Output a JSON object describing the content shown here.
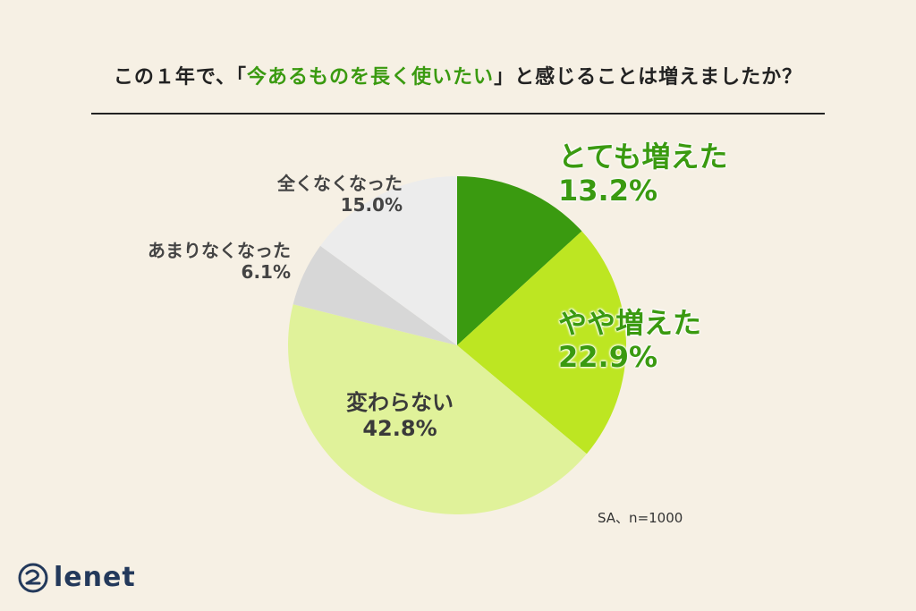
{
  "title": {
    "prefix": "この１年で、「",
    "highlight": "今あるものを長く使いたい",
    "suffix": "」と感じることは増えましたか？"
  },
  "note": "SA、n=1000",
  "logo_text": "lenet",
  "chart_data": {
    "type": "pie",
    "start_angle_deg": 0,
    "direction": "clockwise",
    "slices": [
      {
        "label": "とても増えた",
        "value": 13.2,
        "display": "13.2%",
        "color": "#3a9a10"
      },
      {
        "label": "やや増えた",
        "value": 22.9,
        "display": "22.9%",
        "color": "#bde622"
      },
      {
        "label": "変わらない",
        "value": 42.8,
        "display": "42.8%",
        "color": "#e0f29a"
      },
      {
        "label": "あまりなくなった",
        "value": 6.1,
        "display": "6.1%",
        "color": "#d7d7d7"
      },
      {
        "label": "全くなくなった",
        "value": 15.0,
        "display": "15.0%",
        "color": "#ececec"
      }
    ]
  }
}
